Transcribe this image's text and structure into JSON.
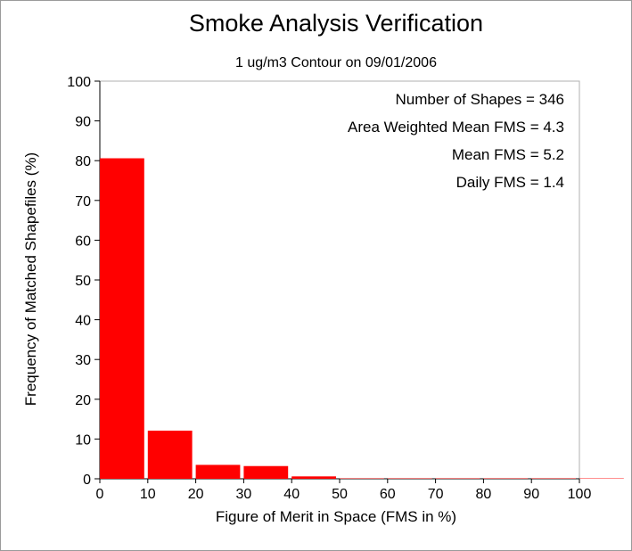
{
  "chart_data": {
    "type": "bar",
    "title": "Smoke Analysis Verification",
    "subtitle": "1 ug/m3 Contour on 09/01/2006",
    "xlabel": "Figure of Merit in Space (FMS in %)",
    "ylabel": "Frequency of Matched Shapefiles (%)",
    "xlim": [
      0,
      100
    ],
    "ylim": [
      0,
      100
    ],
    "x_ticks": [
      "0",
      "10",
      "20",
      "30",
      "40",
      "50",
      "60",
      "70",
      "80",
      "90",
      "100"
    ],
    "y_ticks": [
      "0",
      "10",
      "20",
      "30",
      "40",
      "50",
      "60",
      "70",
      "80",
      "90",
      "100"
    ],
    "bin_width": 10,
    "bins": [
      0,
      10,
      20,
      30,
      40,
      50,
      60,
      70,
      80,
      90,
      100
    ],
    "values": [
      80.6,
      12.1,
      3.5,
      3.2,
      0.6,
      0.1,
      0.1,
      0.1,
      0.1,
      0.1,
      0.1
    ],
    "bar_color": "#ff0000",
    "grid": false,
    "stats": [
      "Number of Shapes = 346",
      "Area Weighted Mean FMS = 4.3",
      "Mean FMS = 5.2",
      "Daily FMS = 1.4"
    ]
  }
}
